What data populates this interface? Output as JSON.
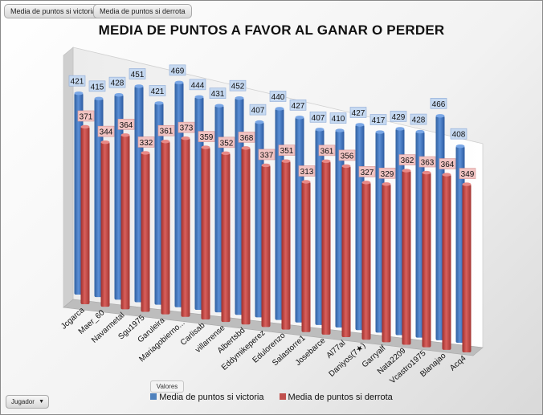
{
  "buttons": {
    "victoria": "Media de puntos si victoria",
    "derrota": "Media de puntos si derrota",
    "valores": "Valores",
    "jugador": "Jugador",
    "jugador_arrow": "▼"
  },
  "colors": {
    "victoria": "#4f81bd",
    "derrota": "#c0504d"
  },
  "chart_data": {
    "type": "bar",
    "title": "MEDIA DE PUNTOS A FAVOR AL GANAR O PERDER",
    "categories": [
      "Jcgarca",
      "Maer_60",
      "Navarmetal",
      "Sgu1975",
      "Garuleira",
      "Mariagobierno...",
      "Carlisab",
      "villarrense",
      "Albertsbd",
      "Eddymikeperez",
      "Edulorenzo",
      "Salastorre1",
      "Josebarce",
      "Al77al",
      "Daniyos(7★)",
      "Garryalf",
      "Nata2209",
      "Vcastro1975",
      "Blanajao",
      "Acq4"
    ],
    "series": [
      {
        "name": "Media de puntos si victoria",
        "values": [
          421,
          415,
          428,
          451,
          421,
          469,
          444,
          431,
          452,
          407,
          440,
          427,
          407,
          410,
          427,
          417,
          429,
          428,
          466,
          408
        ]
      },
      {
        "name": "Media de puntos si derrota",
        "values": [
          371,
          344,
          364,
          332,
          361,
          373,
          359,
          352,
          368,
          337,
          351,
          313,
          361,
          356,
          327,
          329,
          362,
          363,
          364,
          349
        ]
      }
    ],
    "ylim": [
      0,
      500
    ],
    "grid": false,
    "legend": "bottom"
  }
}
